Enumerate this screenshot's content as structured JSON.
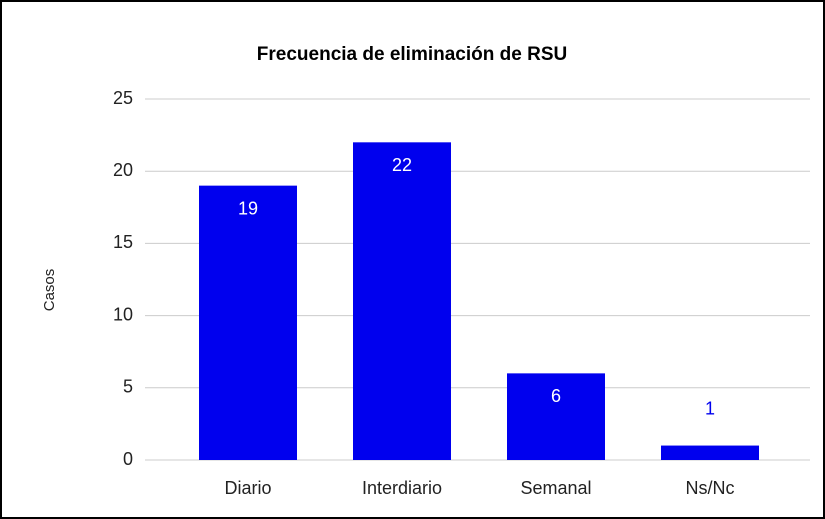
{
  "chart_data": {
    "type": "bar",
    "title": "Frecuencia de eliminación de RSU",
    "y_label": "Casos",
    "categories": [
      "Diario",
      "Interdiario",
      "Semanal",
      "Ns/Nc"
    ],
    "values": [
      19,
      22,
      6,
      1
    ],
    "color": "#0000ee",
    "ylim": [
      0,
      25
    ],
    "yticks": [
      0,
      5,
      10,
      15,
      20,
      25
    ],
    "grid": true
  }
}
